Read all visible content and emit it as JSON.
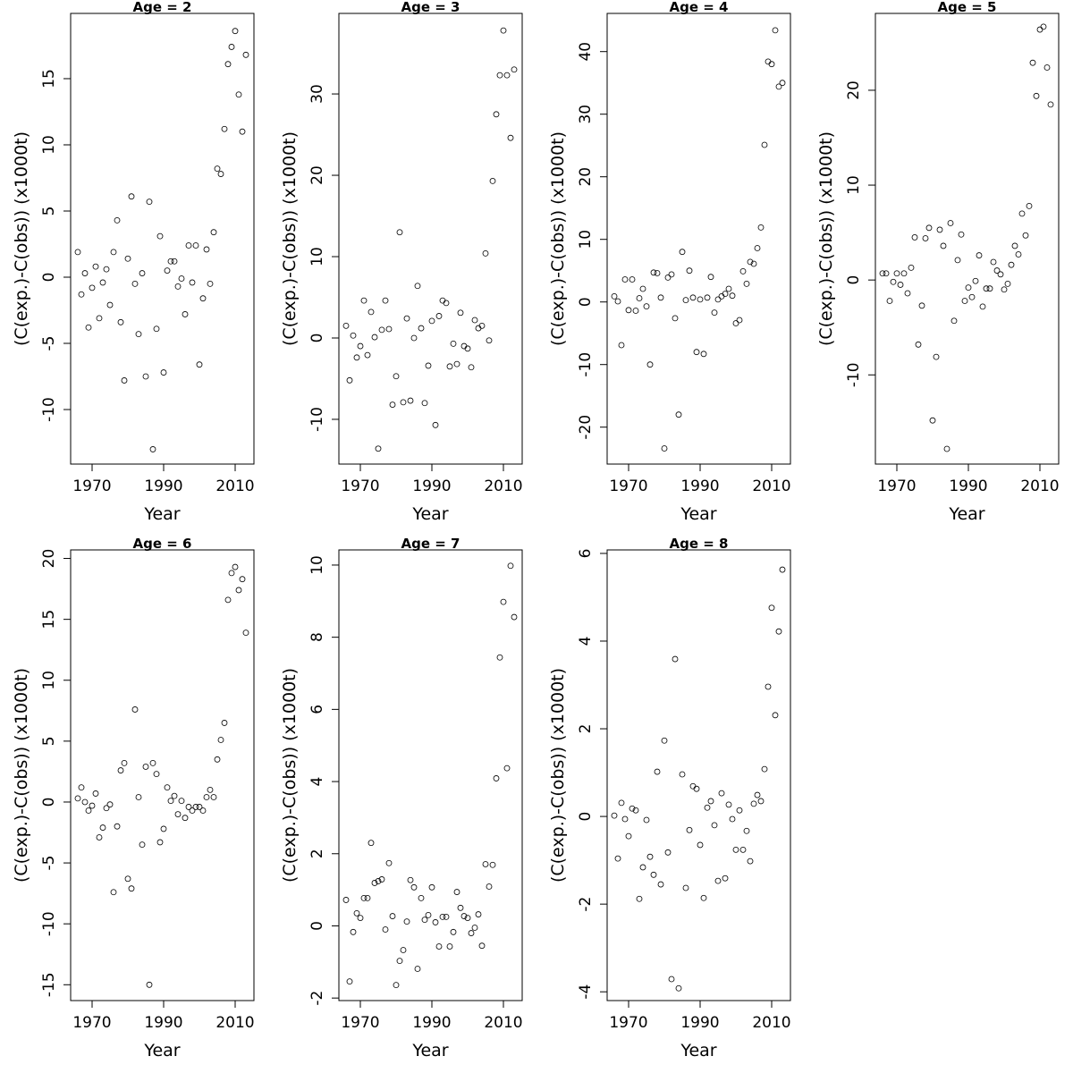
{
  "chart_data": [
    {
      "type": "scatter",
      "title": "Age = 2",
      "x_label": "Year",
      "y_label": "(C(exp.)-C(obs)) (x1000t)",
      "x": [
        1966,
        1967,
        1968,
        1969,
        1970,
        1971,
        1972,
        1973,
        1974,
        1975,
        1976,
        1977,
        1978,
        1979,
        1980,
        1981,
        1982,
        1983,
        1984,
        1985,
        1986,
        1987,
        1988,
        1989,
        1990,
        1991,
        1992,
        1993,
        1994,
        1995,
        1996,
        1997,
        1998,
        1999,
        2000,
        2001,
        2002,
        2003,
        2004,
        2005,
        2006,
        2007,
        2008,
        2009,
        2010,
        2011,
        2012,
        2013
      ],
      "values": [
        1.9,
        -1.3,
        0.3,
        -3.8,
        -0.8,
        0.8,
        -3.1,
        -0.4,
        0.6,
        -2.1,
        1.9,
        4.3,
        -3.4,
        -7.8,
        1.4,
        6.1,
        -0.5,
        -4.3,
        0.3,
        -7.5,
        5.7,
        -13,
        -3.9,
        3.1,
        -7.2,
        0.5,
        1.2,
        1.2,
        -0.7,
        -0.1,
        -2.8,
        2.4,
        -0.4,
        2.4,
        -6.6,
        -1.6,
        2.1,
        -0.5,
        3.4,
        8.2,
        7.8,
        11.2,
        16.1,
        17.4,
        18.6,
        13.8,
        11,
        16.8
      ],
      "xlim": [
        1964,
        2015.25
      ],
      "ylim": [
        -14.12,
        19.93
      ],
      "xticks": [
        1970,
        1990,
        2010
      ],
      "yticks": [
        -10,
        -5,
        0,
        5,
        10,
        15
      ]
    },
    {
      "type": "scatter",
      "title": "Age = 3",
      "x_label": "Year",
      "y_label": "(C(exp.)-C(obs)) (x1000t)",
      "x": [
        1966,
        1967,
        1968,
        1969,
        1970,
        1971,
        1972,
        1973,
        1974,
        1975,
        1976,
        1977,
        1978,
        1979,
        1980,
        1981,
        1982,
        1983,
        1984,
        1985,
        1986,
        1987,
        1988,
        1989,
        1990,
        1991,
        1992,
        1993,
        1994,
        1995,
        1996,
        1997,
        1998,
        1999,
        2000,
        2001,
        2002,
        2003,
        2004,
        2005,
        2006,
        2007,
        2008,
        2009,
        2010,
        2011,
        2012,
        2013
      ],
      "values": [
        1.5,
        -5.2,
        0.3,
        -2.4,
        -1,
        4.6,
        -2.1,
        3.2,
        0.1,
        -13.6,
        1,
        4.6,
        1.1,
        -8.2,
        -4.7,
        13,
        -7.9,
        2.4,
        -7.7,
        0,
        6.4,
        1.2,
        -8,
        -3.4,
        2.1,
        -10.7,
        2.7,
        4.6,
        4.3,
        -3.5,
        -0.7,
        -3.2,
        3.1,
        -1,
        -1.3,
        -3.6,
        2.2,
        1.2,
        1.5,
        10.4,
        -0.3,
        19.3,
        27.5,
        32.3,
        37.8,
        32.3,
        24.6,
        33
      ],
      "xlim": [
        1964,
        2015.25
      ],
      "ylim": [
        -15.5,
        39.9
      ],
      "xticks": [
        1970,
        1990,
        2010
      ],
      "yticks": [
        -10,
        0,
        10,
        20,
        30
      ]
    },
    {
      "type": "scatter",
      "title": "Age = 4",
      "x_label": "Year",
      "y_label": "(C(exp.)-C(obs)) (x1000t)",
      "x": [
        1966,
        1967,
        1968,
        1969,
        1970,
        1971,
        1972,
        1973,
        1974,
        1975,
        1976,
        1977,
        1978,
        1979,
        1980,
        1981,
        1982,
        1983,
        1984,
        1985,
        1986,
        1987,
        1988,
        1989,
        1990,
        1991,
        1992,
        1993,
        1994,
        1995,
        1996,
        1997,
        1998,
        1999,
        2000,
        2001,
        2002,
        2003,
        2004,
        2005,
        2006,
        2007,
        2008,
        2009,
        2010,
        2011,
        2012,
        2013
      ],
      "values": [
        0.9,
        0.1,
        -6.9,
        3.6,
        -1.3,
        3.6,
        -1.4,
        0.6,
        2.1,
        -0.7,
        -10,
        4.7,
        4.6,
        0.7,
        -23.4,
        3.9,
        4.4,
        -2.6,
        -18,
        8,
        0.3,
        5,
        0.7,
        -8,
        0.4,
        -8.3,
        0.7,
        4,
        -1.7,
        0.4,
        0.9,
        1.3,
        2.1,
        1,
        -3.4,
        -2.9,
        4.9,
        2.9,
        6.4,
        6.1,
        8.6,
        11.9,
        25.1,
        38.4,
        38,
        43.4,
        34.4,
        35
      ],
      "xlim": [
        1964,
        2015.25
      ],
      "ylim": [
        -25.9,
        46.1
      ],
      "xticks": [
        1970,
        1990,
        2010
      ],
      "yticks": [
        -20,
        -10,
        0,
        10,
        20,
        30,
        40
      ]
    },
    {
      "type": "scatter",
      "title": "Age = 5",
      "x_label": "Year",
      "y_label": "(C(exp.)-C(obs)) (x1000t)",
      "x": [
        1966,
        1967,
        1968,
        1969,
        1970,
        1971,
        1972,
        1973,
        1974,
        1975,
        1976,
        1977,
        1978,
        1979,
        1980,
        1981,
        1982,
        1983,
        1984,
        1985,
        1986,
        1987,
        1988,
        1989,
        1990,
        1991,
        1992,
        1993,
        1994,
        1995,
        1996,
        1997,
        1998,
        1999,
        2000,
        2001,
        2002,
        2003,
        2004,
        2005,
        2006,
        2007,
        2008,
        2009,
        2010,
        2011,
        2012,
        2013
      ],
      "values": [
        0.7,
        0.7,
        -2.2,
        -0.2,
        0.7,
        -0.5,
        0.7,
        -1.4,
        1.3,
        4.5,
        -6.8,
        -2.7,
        4.4,
        5.5,
        -14.8,
        -8.1,
        5.3,
        3.6,
        -17.8,
        6,
        -4.3,
        2.1,
        4.8,
        -2.2,
        -0.8,
        -1.8,
        -0.1,
        2.6,
        -2.8,
        -0.9,
        -0.9,
        1.9,
        1,
        0.6,
        -1,
        -0.4,
        1.6,
        3.6,
        2.7,
        7,
        4.7,
        7.8,
        22.9,
        19.4,
        26.4,
        26.7,
        22.4,
        18.5
      ],
      "xlim": [
        1964,
        2015.25
      ],
      "ylim": [
        -19.4,
        28.1
      ],
      "xticks": [
        1970,
        1990,
        2010
      ],
      "yticks": [
        -10,
        0,
        10,
        20
      ]
    },
    {
      "type": "scatter",
      "title": "Age = 6",
      "x_label": "Year",
      "y_label": "(C(exp.)-C(obs)) (x1000t)",
      "x": [
        1966,
        1967,
        1968,
        1969,
        1970,
        1971,
        1972,
        1973,
        1974,
        1975,
        1976,
        1977,
        1978,
        1979,
        1980,
        1981,
        1982,
        1983,
        1984,
        1985,
        1986,
        1987,
        1988,
        1989,
        1990,
        1991,
        1992,
        1993,
        1994,
        1995,
        1996,
        1997,
        1998,
        1999,
        2000,
        2001,
        2002,
        2003,
        2004,
        2005,
        2006,
        2007,
        2008,
        2009,
        2010,
        2011,
        2012,
        2013
      ],
      "values": [
        0.3,
        1.2,
        0,
        -0.7,
        -0.3,
        0.7,
        -2.9,
        -2.1,
        -0.5,
        -0.2,
        -7.4,
        -2,
        2.6,
        3.2,
        -6.3,
        -7.1,
        7.6,
        0.4,
        -3.5,
        2.9,
        -15,
        3.2,
        2.3,
        -3.3,
        -2.2,
        1.2,
        0.1,
        0.5,
        -1,
        0.1,
        -1.3,
        -0.4,
        -0.7,
        -0.4,
        -0.4,
        -0.7,
        0.4,
        1,
        0.4,
        3.5,
        5.1,
        6.5,
        16.6,
        18.8,
        19.3,
        17.4,
        18.3,
        13.9
      ],
      "xlim": [
        1964,
        2015.25
      ],
      "ylim": [
        -16.3,
        20.7
      ],
      "xticks": [
        1970,
        1990,
        2010
      ],
      "yticks": [
        -15,
        -10,
        -5,
        0,
        5,
        10,
        15,
        20
      ]
    },
    {
      "type": "scatter",
      "title": "Age = 7",
      "x_label": "Year",
      "y_label": "(C(exp.)-C(obs)) (x1000t)",
      "x": [
        1966,
        1967,
        1968,
        1969,
        1970,
        1971,
        1972,
        1973,
        1974,
        1975,
        1976,
        1977,
        1978,
        1979,
        1980,
        1981,
        1982,
        1983,
        1984,
        1985,
        1986,
        1987,
        1988,
        1989,
        1990,
        1991,
        1992,
        1993,
        1994,
        1995,
        1996,
        1997,
        1998,
        1999,
        2000,
        2001,
        2002,
        2003,
        2004,
        2005,
        2006,
        2007,
        2008,
        2009,
        2010,
        2011,
        2012,
        2013
      ],
      "values": [
        0.72,
        -1.54,
        -0.17,
        0.35,
        0.22,
        0.77,
        0.77,
        2.3,
        1.19,
        1.24,
        1.29,
        -0.1,
        1.74,
        0.27,
        -1.64,
        -0.97,
        -0.67,
        0.12,
        1.27,
        1.07,
        -1.19,
        0.77,
        0.17,
        0.3,
        1.07,
        0.1,
        -0.57,
        0.25,
        0.25,
        -0.57,
        -0.17,
        0.94,
        0.5,
        0.27,
        0.22,
        -0.2,
        -0.05,
        0.32,
        -0.55,
        1.71,
        1.09,
        1.69,
        4.09,
        7.44,
        8.98,
        4.37,
        9.98,
        8.56
      ],
      "xlim": [
        1964,
        2015.25
      ],
      "ylim": [
        -2.07,
        10.42
      ],
      "xticks": [
        1970,
        1990,
        2010
      ],
      "yticks": [
        -2,
        0,
        2,
        4,
        6,
        8,
        10
      ]
    },
    {
      "type": "scatter",
      "title": "Age = 8",
      "x_label": "Year",
      "y_label": "(C(exp.)-C(obs)) (x1000t)",
      "x": [
        1966,
        1967,
        1968,
        1969,
        1970,
        1971,
        1972,
        1973,
        1974,
        1975,
        1976,
        1977,
        1978,
        1979,
        1980,
        1981,
        1982,
        1983,
        1984,
        1985,
        1986,
        1987,
        1988,
        1989,
        1990,
        1991,
        1992,
        1993,
        1994,
        1995,
        1996,
        1997,
        1998,
        1999,
        2000,
        2001,
        2002,
        2003,
        2004,
        2005,
        2006,
        2007,
        2008,
        2009,
        2010,
        2011,
        2012,
        2013
      ],
      "values": [
        0.02,
        -0.96,
        0.31,
        -0.06,
        -0.45,
        0.18,
        0.14,
        -1.88,
        -1.16,
        -0.08,
        -0.92,
        -1.33,
        1.02,
        -1.55,
        1.73,
        -0.82,
        -3.71,
        3.59,
        -3.92,
        0.96,
        -1.63,
        -0.31,
        0.69,
        0.63,
        -0.65,
        -1.86,
        0.2,
        0.35,
        -0.2,
        -1.47,
        0.53,
        -1.41,
        0.27,
        -0.06,
        -0.76,
        0.14,
        -0.76,
        -0.33,
        -1.02,
        0.29,
        0.49,
        0.35,
        1.08,
        2.96,
        4.76,
        2.31,
        4.22,
        5.63
      ],
      "xlim": [
        1964,
        2015.25
      ],
      "ylim": [
        -4.2,
        6.08
      ],
      "xticks": [
        1970,
        1990,
        2010
      ],
      "yticks": [
        -4,
        -2,
        0,
        2,
        4,
        6
      ]
    }
  ]
}
